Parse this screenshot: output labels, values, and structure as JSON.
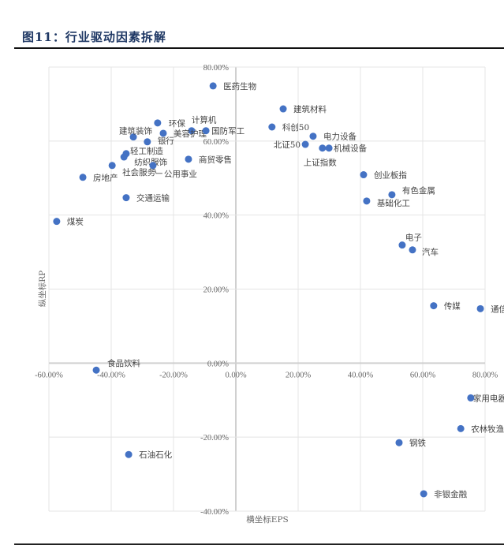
{
  "title": "图11：行业驱动因素拆解",
  "chart_data": {
    "type": "scatter",
    "title": "",
    "xlabel": "横坐标EPS",
    "ylabel": "纵坐标RP",
    "xlim": [
      -60,
      80
    ],
    "ylim": [
      -40,
      80
    ],
    "xticks": [
      "-60.00%",
      "-40.00%",
      "-20.00%",
      "0.00%",
      "20.00%",
      "40.00%",
      "60.00%",
      "80.00%"
    ],
    "yticks": [
      "-40.00%",
      "-20.00%",
      "0.00%",
      "20.00%",
      "40.00%",
      "60.00%",
      "80.00%"
    ],
    "grid": true,
    "marker_color": "#4472c4",
    "points": [
      {
        "label": "医药生物",
        "x": -7.3,
        "y": 74.9
      },
      {
        "label": "建筑材料",
        "x": 15.2,
        "y": 68.7
      },
      {
        "label": "科创50",
        "x": 11.6,
        "y": 63.8
      },
      {
        "label": "电力设备",
        "x": 24.8,
        "y": 61.3
      },
      {
        "label": "北证50",
        "x": 22.3,
        "y": 59.1
      },
      {
        "label": "上证指数",
        "x": 27.8,
        "y": 58.1
      },
      {
        "label": "机械设备",
        "x": 29.9,
        "y": 58.1
      },
      {
        "label": "创业板指",
        "x": 41.0,
        "y": 50.9
      },
      {
        "label": "有色金属",
        "x": 50.1,
        "y": 45.5
      },
      {
        "label": "基础化工",
        "x": 42.0,
        "y": 43.8
      },
      {
        "label": "环保",
        "x": -25.1,
        "y": 64.9
      },
      {
        "label": "计算机",
        "x": -14.2,
        "y": 62.8
      },
      {
        "label": "美容护理",
        "x": -23.3,
        "y": 62.1
      },
      {
        "label": "国防军工",
        "x": -9.6,
        "y": 62.8
      },
      {
        "label": "建筑装饰",
        "x": -32.9,
        "y": 61.1
      },
      {
        "label": "银行",
        "x": -28.4,
        "y": 59.8
      },
      {
        "label": "轻工制造",
        "x": -35.2,
        "y": 56.6
      },
      {
        "label": "纺织服饰",
        "x": -35.9,
        "y": 55.7
      },
      {
        "label": "社会服务",
        "x": -39.7,
        "y": 53.4
      },
      {
        "label": "公用事业",
        "x": -26.6,
        "y": 53.4
      },
      {
        "label": "商贸零售",
        "x": -15.2,
        "y": 55.1
      },
      {
        "label": "房地产",
        "x": -49.1,
        "y": 50.2
      },
      {
        "label": "交通运输",
        "x": -35.2,
        "y": 44.7
      },
      {
        "label": "煤炭",
        "x": -57.5,
        "y": 38.3
      },
      {
        "label": "电子",
        "x": 53.4,
        "y": 31.9
      },
      {
        "label": "汽车",
        "x": 56.7,
        "y": 30.6
      },
      {
        "label": "传媒",
        "x": 63.5,
        "y": 15.5
      },
      {
        "label": "通信",
        "x": 78.5,
        "y": 14.7
      },
      {
        "label": "家用电器",
        "x": 75.4,
        "y": -9.4
      },
      {
        "label": "农林牧渔",
        "x": 72.2,
        "y": -17.7
      },
      {
        "label": "钢铁",
        "x": 52.4,
        "y": -21.5
      },
      {
        "label": "非银金融",
        "x": 60.3,
        "y": -35.3
      },
      {
        "label": "食品饮料",
        "x": -44.8,
        "y": -1.9
      },
      {
        "label": "石油石化",
        "x": -34.4,
        "y": -24.7
      }
    ]
  }
}
